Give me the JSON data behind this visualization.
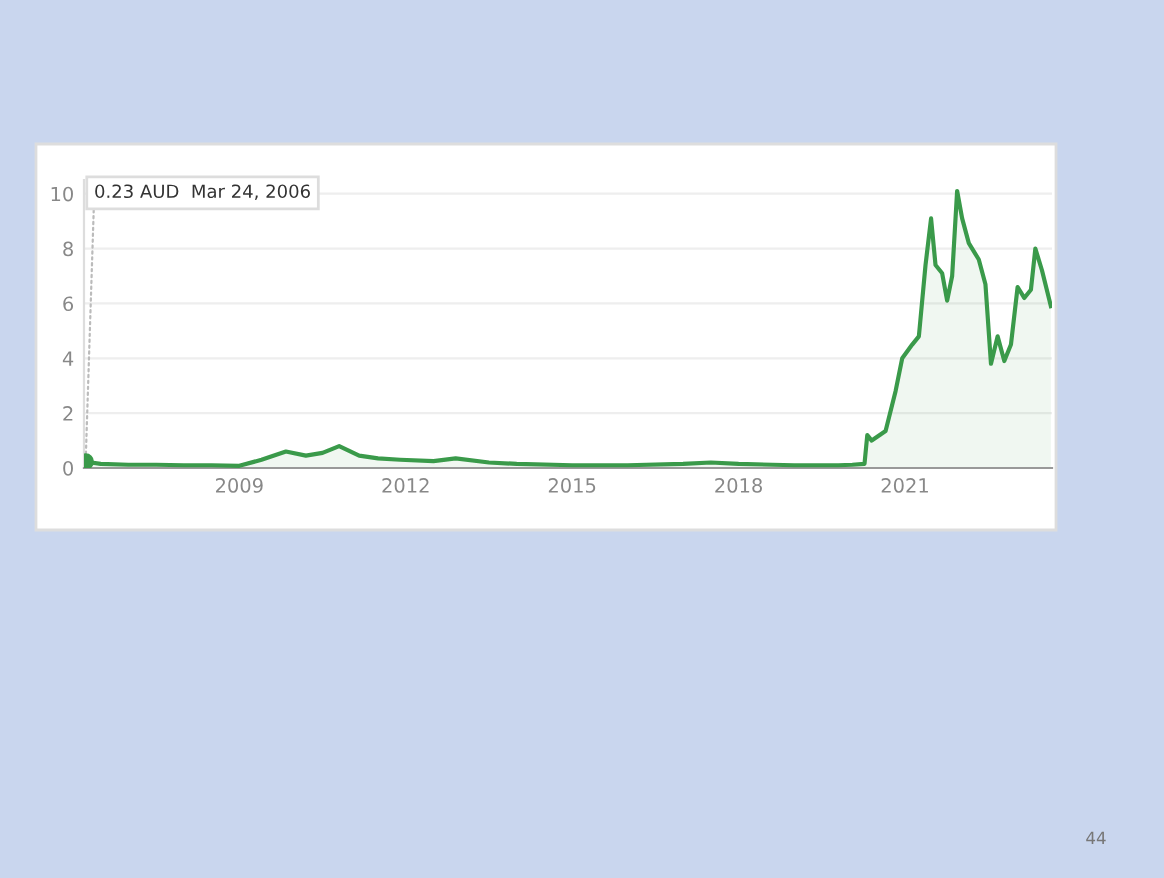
{
  "chart_data": {
    "type": "area",
    "x": [
      2006.23,
      2006.5,
      2007,
      2007.5,
      2008,
      2008.5,
      2009,
      2009.4,
      2009.84,
      2010.2,
      2010.5,
      2010.8,
      2011.16,
      2011.5,
      2011.9,
      2012.5,
      2012.9,
      2013.5,
      2014,
      2015,
      2016,
      2017,
      2017.5,
      2018,
      2019,
      2019.8,
      2020.05,
      2020.27,
      2020.32,
      2020.4,
      2020.65,
      2020.83,
      2020.95,
      2021.13,
      2021.25,
      2021.37,
      2021.47,
      2021.55,
      2021.67,
      2021.76,
      2021.85,
      2021.94,
      2022.03,
      2022.15,
      2022.33,
      2022.45,
      2022.55,
      2022.67,
      2022.79,
      2022.91,
      2023.03,
      2023.15,
      2023.27,
      2023.35,
      2023.47,
      2023.63
    ],
    "series": [
      {
        "color": "#3a9a4a",
        "values": [
          0.23,
          0.15,
          0.12,
          0.12,
          0.1,
          0.1,
          0.08,
          0.3,
          0.6,
          0.45,
          0.55,
          0.8,
          0.45,
          0.35,
          0.3,
          0.25,
          0.35,
          0.2,
          0.15,
          0.1,
          0.1,
          0.15,
          0.2,
          0.15,
          0.1,
          0.1,
          0.12,
          0.15,
          1.2,
          1.0,
          1.35,
          2.8,
          4.0,
          4.5,
          4.8,
          7.4,
          9.1,
          7.4,
          7.1,
          6.1,
          7.0,
          10.1,
          9.1,
          8.2,
          7.6,
          6.7,
          3.8,
          4.8,
          3.9,
          4.5,
          6.6,
          6.2,
          6.5,
          8.0,
          7.2,
          5.9
        ]
      }
    ],
    "xlim": [
      2006.2,
      2023.65
    ],
    "xticks": [
      2009,
      2012,
      2015,
      2018,
      2021
    ],
    "ylim": [
      0,
      10.5
    ],
    "yticks": [
      0,
      2,
      4,
      6,
      8,
      10
    ],
    "grid": "y",
    "annotations": [
      {
        "text": "0.23 AUD  Mar 24, 2006",
        "x": 2006.23,
        "y": 0.23
      },
      "44"
    ]
  }
}
